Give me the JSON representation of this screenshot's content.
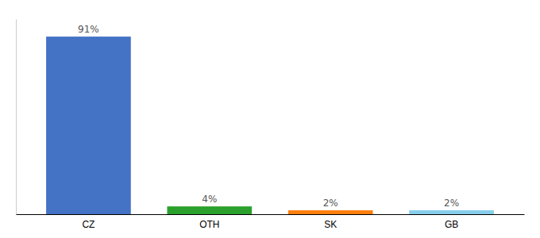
{
  "chart_data": {
    "type": "bar",
    "categories": [
      "CZ",
      "OTH",
      "SK",
      "GB"
    ],
    "values": [
      91,
      4,
      2,
      2
    ],
    "value_labels": [
      "91%",
      "4%",
      "2%",
      "2%"
    ],
    "colors": [
      "#4472c4",
      "#2ca02c",
      "#ff7f0e",
      "#87ceeb"
    ],
    "ylim": [
      0,
      100
    ],
    "data_labels": true,
    "tick_labels": "x"
  }
}
